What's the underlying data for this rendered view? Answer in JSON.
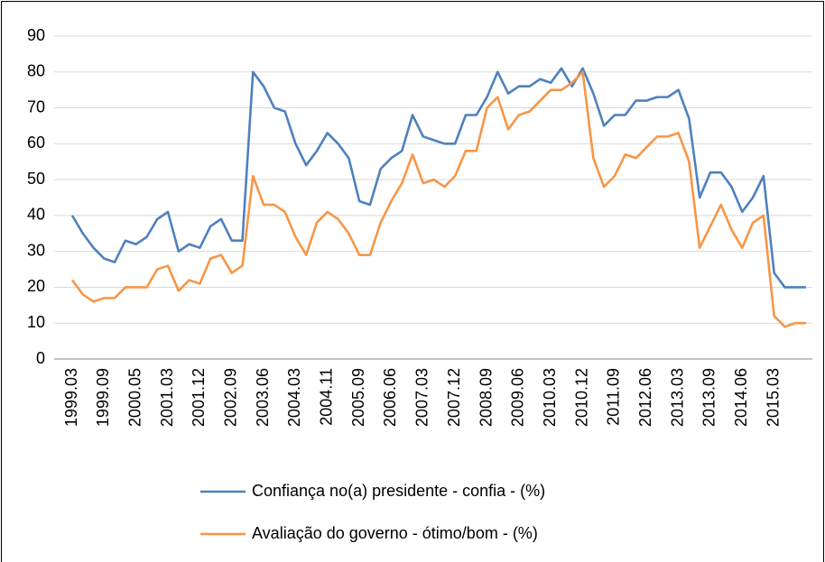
{
  "chart_data": {
    "type": "line",
    "categories": [
      "1999.03",
      null,
      null,
      "1999.09",
      null,
      null,
      "2000.05",
      null,
      null,
      "2001.03",
      null,
      null,
      "2001.12",
      null,
      null,
      "2002.09",
      null,
      null,
      "2003.06",
      null,
      null,
      "2004.03",
      null,
      null,
      "2004.11",
      null,
      null,
      "2005.09",
      null,
      null,
      "2006.06",
      null,
      null,
      "2007.03",
      null,
      null,
      "2007.12",
      null,
      null,
      "2008.09",
      null,
      null,
      "2009.06",
      null,
      null,
      "2010.03",
      null,
      null,
      "2010.12",
      null,
      null,
      "2011.09",
      null,
      null,
      "2012.06",
      null,
      null,
      "2013.03",
      null,
      null,
      "2013.09",
      null,
      null,
      "2014.06",
      null,
      null,
      "2015.03",
      null,
      null,
      null
    ],
    "series": [
      {
        "name": "Confiança no(a) presidente - confia - (%)",
        "color": "#4F81BD",
        "values": [
          40,
          35,
          31,
          28,
          27,
          33,
          32,
          34,
          39,
          41,
          30,
          32,
          31,
          37,
          39,
          33,
          33,
          80,
          76,
          70,
          69,
          60,
          54,
          58,
          63,
          60,
          56,
          44,
          43,
          53,
          56,
          58,
          68,
          62,
          61,
          60,
          60,
          68,
          68,
          73,
          80,
          74,
          76,
          76,
          78,
          77,
          81,
          76,
          81,
          74,
          65,
          68,
          68,
          72,
          72,
          73,
          73,
          75,
          67,
          45,
          52,
          52,
          48,
          41,
          45,
          51,
          24,
          20,
          20,
          20
        ]
      },
      {
        "name": "Avaliação do governo - ótimo/bom - (%)",
        "color": "#F79646",
        "values": [
          22,
          18,
          16,
          17,
          17,
          20,
          20,
          20,
          25,
          26,
          19,
          22,
          21,
          28,
          29,
          24,
          26,
          51,
          43,
          43,
          41,
          34,
          29,
          38,
          41,
          39,
          35,
          29,
          29,
          38,
          44,
          49,
          57,
          49,
          50,
          48,
          51,
          58,
          58,
          70,
          73,
          64,
          68,
          69,
          72,
          75,
          75,
          77,
          80,
          56,
          48,
          51,
          57,
          56,
          59,
          62,
          62,
          63,
          55,
          31,
          37,
          43,
          36,
          31,
          38,
          40,
          12,
          9,
          10,
          10
        ]
      }
    ],
    "ylim": [
      0,
      90
    ],
    "yticks": [
      0,
      10,
      20,
      30,
      40,
      50,
      60,
      70,
      80,
      90
    ],
    "grid": true,
    "legend": "bottom"
  }
}
